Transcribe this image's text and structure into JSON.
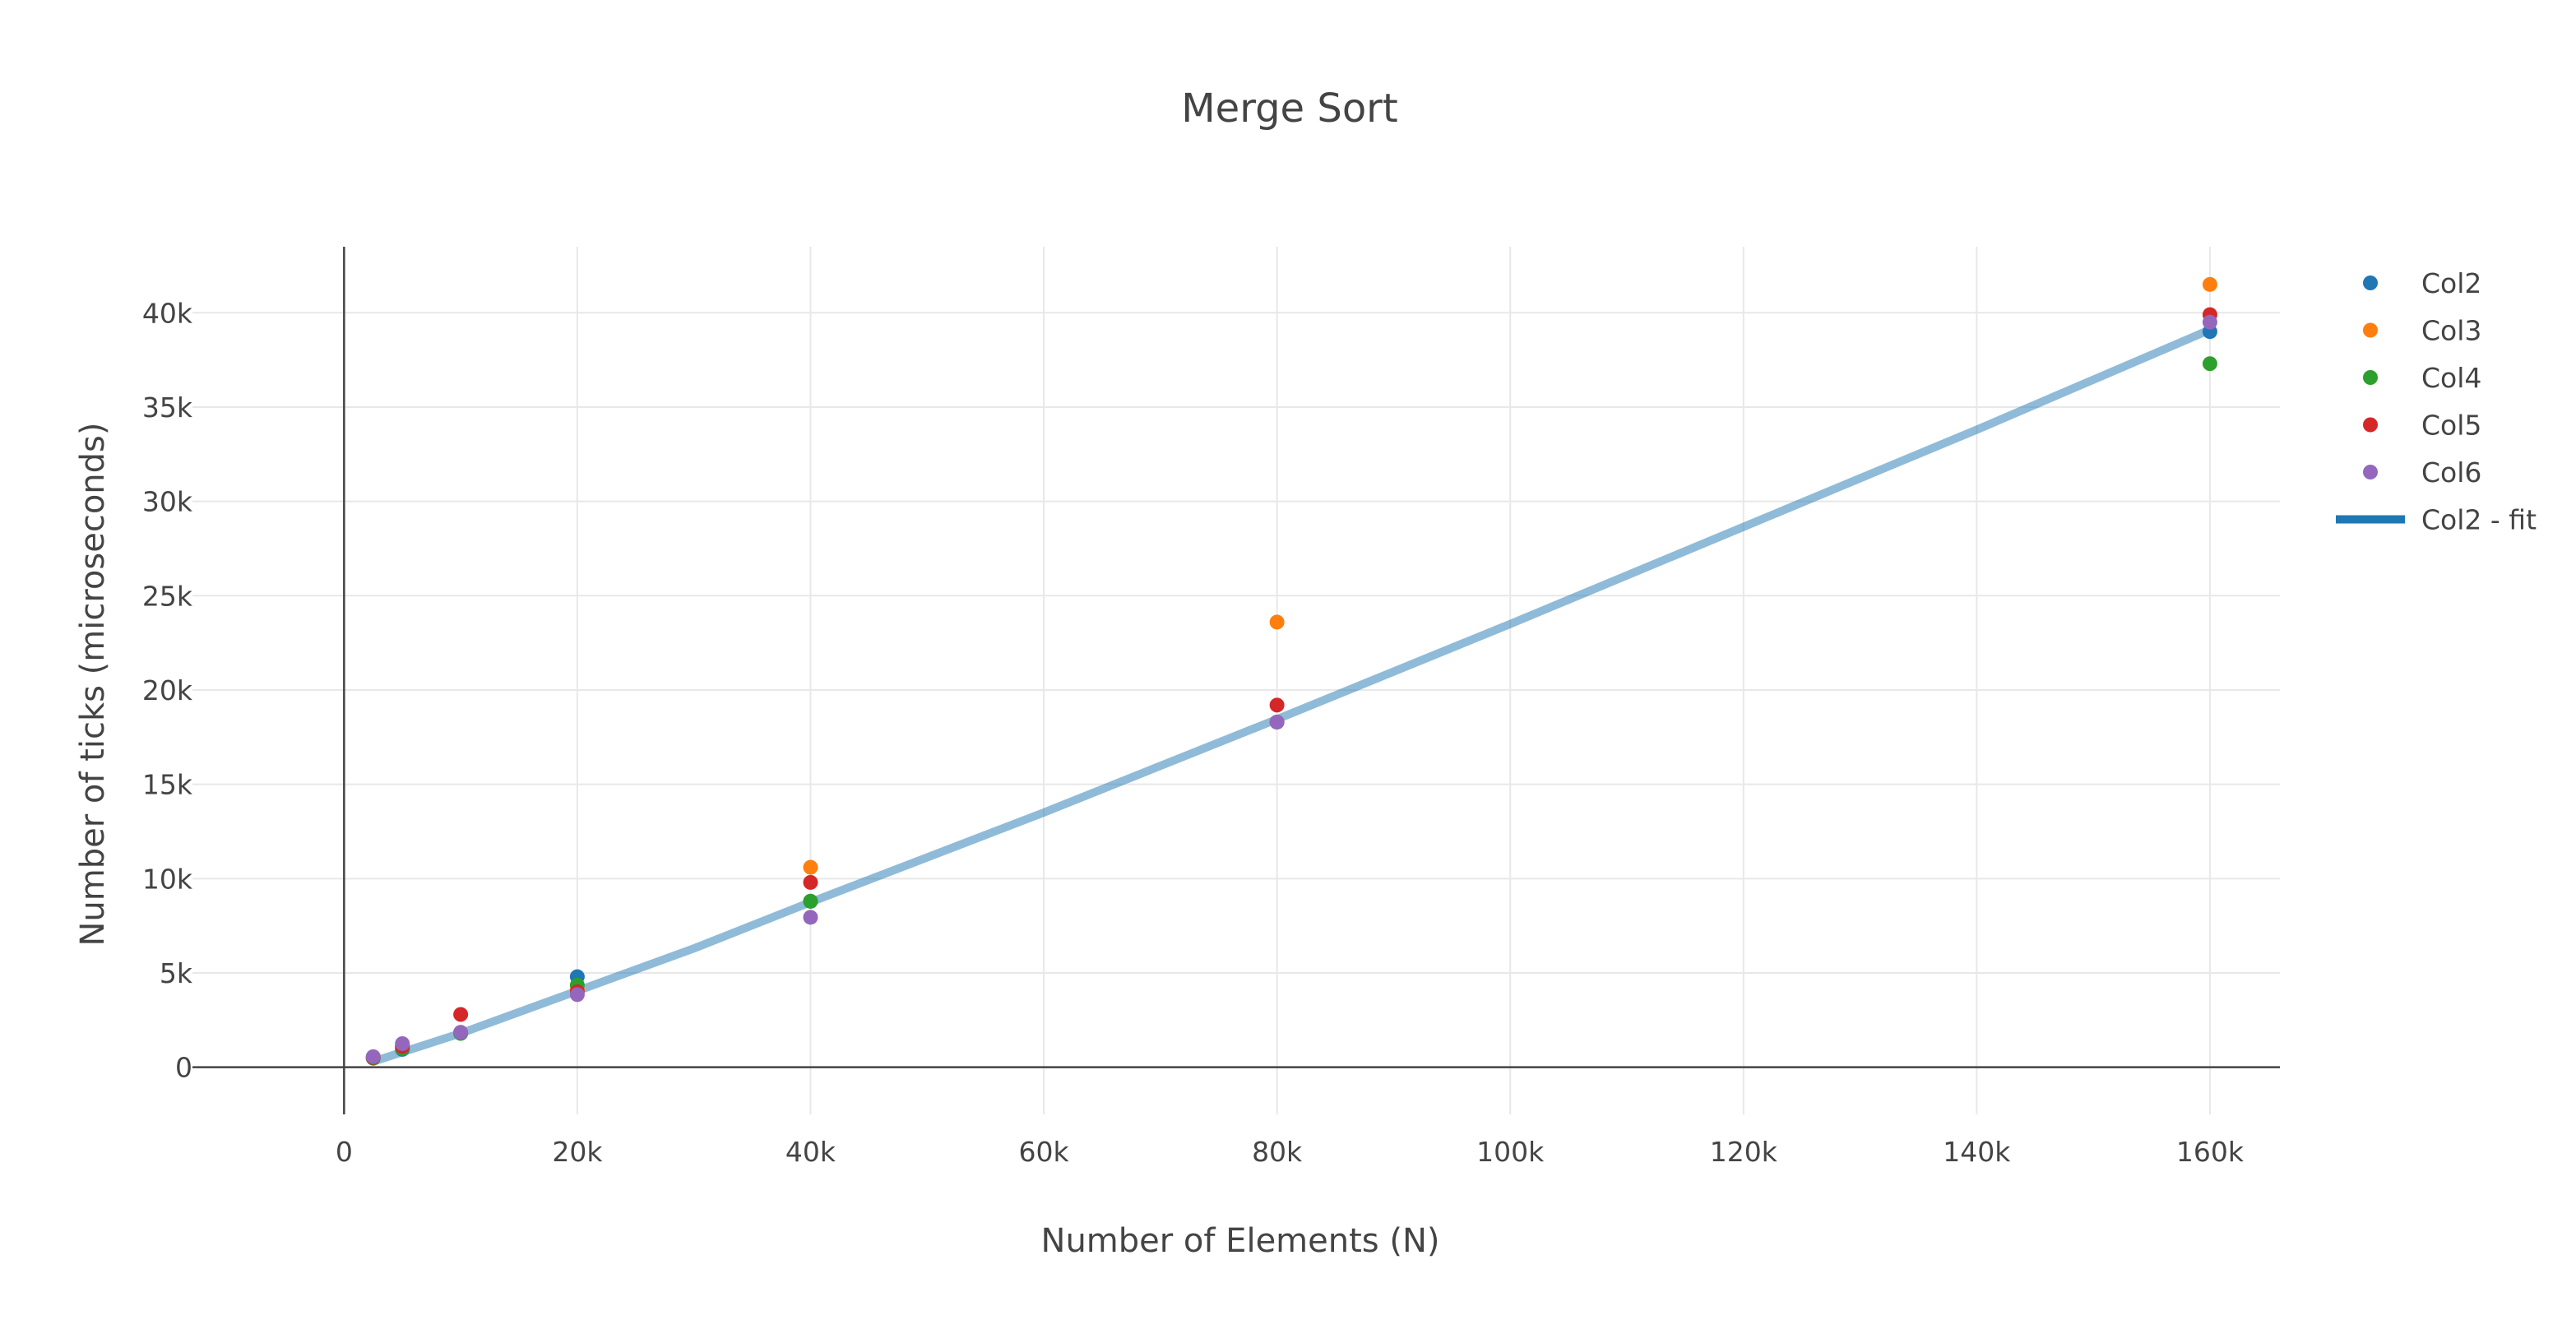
{
  "chart_data": {
    "type": "scatter",
    "title": "Merge Sort",
    "xlabel": "Number of Elements (N)",
    "ylabel": "Number of ticks (microseconds)",
    "xlim": [
      -13000,
      166000
    ],
    "ylim": [
      -2500,
      43500
    ],
    "grid": true,
    "legend_position": "top-right",
    "x_ticks": [
      0,
      20000,
      40000,
      60000,
      80000,
      100000,
      120000,
      140000,
      160000
    ],
    "x_tick_labels": [
      "0",
      "20k",
      "40k",
      "60k",
      "80k",
      "100k",
      "120k",
      "140k",
      "160k"
    ],
    "y_ticks": [
      0,
      5000,
      10000,
      15000,
      20000,
      25000,
      30000,
      35000,
      40000
    ],
    "y_tick_labels": [
      "0",
      "5k",
      "10k",
      "15k",
      "20k",
      "25k",
      "30k",
      "35k",
      "40k"
    ],
    "series": [
      {
        "name": "Col2",
        "color": "#1f77b4",
        "x": [
          2500,
          5000,
          10000,
          20000,
          40000,
          80000,
          160000
        ],
        "y": [
          500,
          950,
          1800,
          4800,
          8800,
          18300,
          39000
        ]
      },
      {
        "name": "Col3",
        "color": "#ff7f0e",
        "x": [
          2500,
          5000,
          10000,
          20000,
          40000,
          80000,
          160000
        ],
        "y": [
          550,
          1150,
          1850,
          4100,
          10600,
          23600,
          41500
        ]
      },
      {
        "name": "Col4",
        "color": "#2ca02c",
        "x": [
          2500,
          5000,
          10000,
          20000,
          40000,
          80000,
          160000
        ],
        "y": [
          480,
          1000,
          1800,
          4350,
          8800,
          18300,
          37300
        ]
      },
      {
        "name": "Col5",
        "color": "#d62728",
        "x": [
          2500,
          5000,
          10000,
          20000,
          40000,
          80000,
          160000
        ],
        "y": [
          520,
          1100,
          2800,
          4000,
          9800,
          19200,
          39900
        ]
      },
      {
        "name": "Col6",
        "color": "#9467bd",
        "x": [
          2500,
          5000,
          10000,
          20000,
          40000,
          80000,
          160000
        ],
        "y": [
          560,
          1250,
          1850,
          3850,
          7950,
          18300,
          39500
        ]
      }
    ],
    "fit": {
      "name": "Col2 - fit",
      "color": "#1f77b4",
      "x": [
        2500,
        5000,
        10000,
        20000,
        30000,
        40000,
        60000,
        80000,
        100000,
        120000,
        140000,
        160000
      ],
      "y": [
        300,
        800,
        1800,
        4050,
        6300,
        8750,
        13500,
        18450,
        23500,
        28650,
        33800,
        39100
      ]
    }
  }
}
